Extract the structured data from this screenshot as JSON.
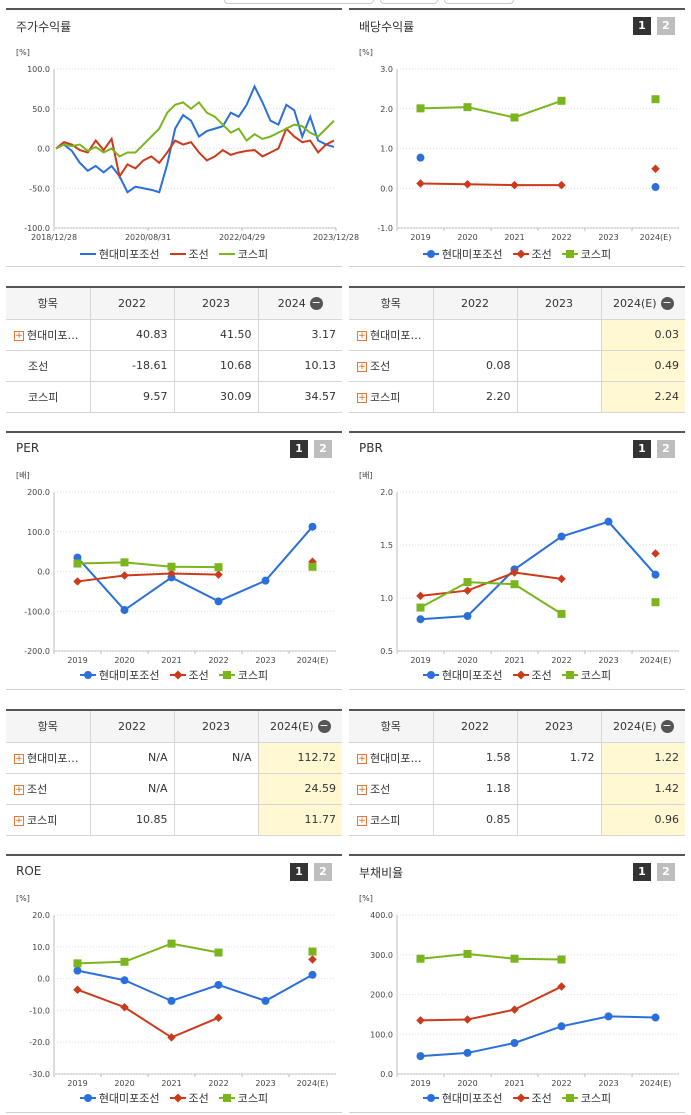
{
  "chart_data": [
    {
      "type": "line",
      "title": "주가수익률",
      "unit": "[%]",
      "x_ticks": [
        "2018/12/28",
        "2020/08/31",
        "2022/04/29",
        "2023/12/28"
      ],
      "y_ticks": [
        "100.0",
        "50.0",
        "0.0",
        "-50.0",
        "-100.0"
      ],
      "ylim": [
        -100,
        100
      ],
      "series": [
        {
          "name": "현대미포조선",
          "color": "#2a6fdb",
          "values": [
            0,
            5,
            -3,
            -18,
            -28,
            -22,
            -30,
            -22,
            -35,
            -55,
            -48,
            -50,
            -52,
            -55,
            -20,
            25,
            42,
            35,
            15,
            22,
            25,
            28,
            45,
            40,
            55,
            78,
            58,
            35,
            30,
            55,
            48,
            15,
            40,
            10,
            5,
            2
          ]
        },
        {
          "name": "조선",
          "color": "#cc3a1a",
          "values": [
            0,
            8,
            5,
            -2,
            -5,
            10,
            -2,
            12,
            -35,
            -20,
            -25,
            -15,
            -10,
            -18,
            -5,
            10,
            5,
            8,
            -5,
            -15,
            -10,
            -2,
            -8,
            -5,
            -3,
            -2,
            -10,
            -5,
            0,
            25,
            15,
            8,
            10,
            -5,
            5,
            10
          ]
        },
        {
          "name": "코스피",
          "color": "#7ab51d",
          "values": [
            0,
            5,
            3,
            5,
            -3,
            2,
            -5,
            0,
            -10,
            -5,
            -5,
            5,
            15,
            25,
            45,
            55,
            58,
            50,
            58,
            45,
            40,
            30,
            20,
            25,
            10,
            18,
            12,
            15,
            20,
            25,
            30,
            28,
            20,
            15,
            25,
            35
          ]
        }
      ]
    },
    {
      "type": "line",
      "title": "배당수익률",
      "unit": "[%]",
      "categories": [
        "2019",
        "2020",
        "2021",
        "2022",
        "2023",
        "2024(E)"
      ],
      "y_ticks": [
        "3.0",
        "2.0",
        "1.0",
        "0.0",
        "-1.0"
      ],
      "ylim": [
        -1,
        3
      ],
      "series": [
        {
          "name": "현대미포조선",
          "color": "#2a6fdb",
          "marker": "circle",
          "values": [
            0.77,
            null,
            null,
            null,
            null,
            0.03
          ]
        },
        {
          "name": "조선",
          "color": "#cc3a1a",
          "marker": "diamond",
          "values": [
            0.12,
            0.1,
            0.08,
            0.08,
            null,
            0.49
          ]
        },
        {
          "name": "코스피",
          "color": "#7ab51d",
          "marker": "square",
          "values": [
            2.01,
            2.04,
            1.78,
            2.2,
            null,
            2.24
          ]
        }
      ]
    },
    {
      "type": "line",
      "title": "PER",
      "unit": "[배]",
      "categories": [
        "2019",
        "2020",
        "2021",
        "2022",
        "2023",
        "2024(E)"
      ],
      "y_ticks": [
        "200.0",
        "100.0",
        "0.0",
        "-100.0",
        "-200.0"
      ],
      "ylim": [
        -200,
        200
      ],
      "series": [
        {
          "name": "현대미포조선",
          "color": "#2a6fdb",
          "marker": "circle",
          "values": [
            35,
            -97,
            -15,
            -75,
            -23,
            112.72
          ]
        },
        {
          "name": "조선",
          "color": "#cc3a1a",
          "marker": "diamond",
          "values": [
            -25,
            -10,
            -5,
            -8,
            null,
            24.59
          ]
        },
        {
          "name": "코스피",
          "color": "#7ab51d",
          "marker": "square",
          "values": [
            20,
            23,
            12,
            10.85,
            null,
            11.77
          ]
        }
      ]
    },
    {
      "type": "line",
      "title": "PBR",
      "unit": "[배]",
      "categories": [
        "2019",
        "2020",
        "2021",
        "2022",
        "2023",
        "2024(E)"
      ],
      "y_ticks": [
        "2.0",
        "1.5",
        "1.0",
        "0.5"
      ],
      "ylim": [
        0.5,
        2.0
      ],
      "series": [
        {
          "name": "현대미포조선",
          "color": "#2a6fdb",
          "marker": "circle",
          "values": [
            0.8,
            0.83,
            1.27,
            1.58,
            1.72,
            1.22
          ]
        },
        {
          "name": "조선",
          "color": "#cc3a1a",
          "marker": "diamond",
          "values": [
            1.02,
            1.07,
            1.24,
            1.18,
            null,
            1.42
          ]
        },
        {
          "name": "코스피",
          "color": "#7ab51d",
          "marker": "square",
          "values": [
            0.91,
            1.15,
            1.13,
            0.85,
            null,
            0.96
          ]
        }
      ]
    },
    {
      "type": "line",
      "title": "ROE",
      "unit": "[%]",
      "categories": [
        "2019",
        "2020",
        "2021",
        "2022",
        "2023",
        "2024(E)"
      ],
      "y_ticks": [
        "20.0",
        "10.0",
        "0.0",
        "-10.0",
        "-20.0",
        "-30.0"
      ],
      "ylim": [
        -30,
        20
      ],
      "series": [
        {
          "name": "현대미포조선",
          "color": "#2a6fdb",
          "marker": "circle",
          "values": [
            2.5,
            -0.5,
            -7.0,
            -2.0,
            -7.0,
            1.2
          ]
        },
        {
          "name": "조선",
          "color": "#cc3a1a",
          "marker": "diamond",
          "values": [
            -3.5,
            -9.0,
            -18.5,
            -12.3,
            null,
            6.0
          ]
        },
        {
          "name": "코스피",
          "color": "#7ab51d",
          "marker": "square",
          "values": [
            4.8,
            5.3,
            11.0,
            8.2,
            null,
            8.5
          ]
        }
      ]
    },
    {
      "type": "line",
      "title": "부채비율",
      "unit": "[%]",
      "categories": [
        "2019",
        "2020",
        "2021",
        "2022",
        "2023",
        "2024(E)"
      ],
      "y_ticks": [
        "400.0",
        "300.0",
        "200.0",
        "100.0",
        "0.0"
      ],
      "ylim": [
        0,
        400
      ],
      "series": [
        {
          "name": "현대미포조선",
          "color": "#2a6fdb",
          "marker": "circle",
          "values": [
            45,
            53,
            78,
            120,
            145,
            142
          ]
        },
        {
          "name": "조선",
          "color": "#cc3a1a",
          "marker": "diamond",
          "values": [
            135,
            137,
            162,
            220,
            null,
            null
          ]
        },
        {
          "name": "코스피",
          "color": "#7ab51d",
          "marker": "square",
          "values": [
            290,
            302,
            290,
            288,
            null,
            null
          ]
        }
      ]
    }
  ],
  "legend_names": [
    "현대미포조선",
    "조선",
    "코스피"
  ],
  "pager": {
    "page1": "1",
    "page2": "2"
  },
  "tables": {
    "t1": {
      "headers": [
        "항목",
        "2022",
        "2023",
        "2024"
      ],
      "rows": [
        {
          "name": "현대미포…",
          "v": [
            "40.83",
            "41.50",
            "3.17"
          ]
        },
        {
          "name": "조선",
          "v": [
            "-18.61",
            "10.68",
            "10.13"
          ]
        },
        {
          "name": "코스피",
          "v": [
            "9.57",
            "30.09",
            "34.57"
          ]
        }
      ]
    },
    "t2": {
      "headers": [
        "항목",
        "2022",
        "2023",
        "2024(E)"
      ],
      "rows": [
        {
          "name": "현대미포…",
          "v": [
            "",
            "",
            "0.03"
          ]
        },
        {
          "name": "조선",
          "v": [
            "0.08",
            "",
            "0.49"
          ]
        },
        {
          "name": "코스피",
          "v": [
            "2.20",
            "",
            "2.24"
          ]
        }
      ]
    },
    "t3": {
      "headers": [
        "항목",
        "2022",
        "2023",
        "2024(E)"
      ],
      "rows": [
        {
          "name": "현대미포…",
          "v": [
            "N/A",
            "N/A",
            "112.72"
          ]
        },
        {
          "name": "조선",
          "v": [
            "N/A",
            "",
            "24.59"
          ]
        },
        {
          "name": "코스피",
          "v": [
            "10.85",
            "",
            "11.77"
          ]
        }
      ]
    },
    "t4": {
      "headers": [
        "항목",
        "2022",
        "2023",
        "2024(E)"
      ],
      "rows": [
        {
          "name": "현대미포…",
          "v": [
            "1.58",
            "1.72",
            "1.22"
          ]
        },
        {
          "name": "조선",
          "v": [
            "1.18",
            "",
            "1.42"
          ]
        },
        {
          "name": "코스피",
          "v": [
            "0.85",
            "",
            "0.96"
          ]
        }
      ]
    }
  },
  "minus_symbol": "−",
  "plus_symbol": "+",
  "top_fragment": "",
  "icons": {
    "expand": "plus-square-icon",
    "collapse": "minus-circle-icon"
  }
}
